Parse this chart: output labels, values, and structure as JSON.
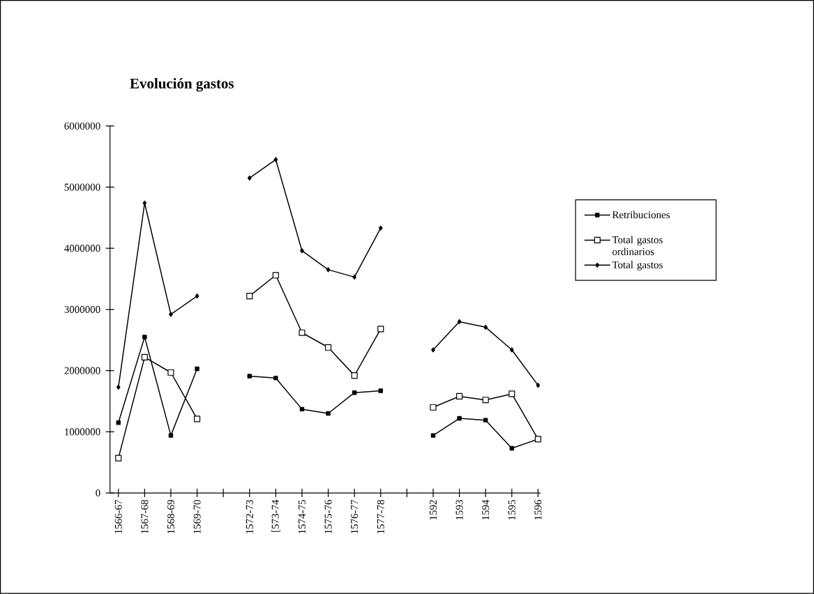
{
  "chart_data": {
    "type": "line",
    "title": "Evolución gastos",
    "categories": [
      "1566-67",
      "1567-68",
      "1568-69",
      "1569-70",
      null,
      "1572-73",
      "[573-74",
      "1574-75",
      "1575-76",
      "1576-77",
      "1577-78",
      null,
      "1592",
      "1593",
      "1594",
      "1595",
      "1596"
    ],
    "series": [
      {
        "name": "Retribuciones",
        "color": "#000000",
        "marker": "square",
        "values": [
          1150000,
          2550000,
          940000,
          2030000,
          null,
          1910000,
          1880000,
          1370000,
          1300000,
          1640000,
          1670000,
          null,
          940000,
          1220000,
          1190000,
          730000,
          880000
        ]
      },
      {
        "name": "Total gastos ordinarios",
        "color": "#000000",
        "marker": "square",
        "values": [
          570000,
          2220000,
          1970000,
          1210000,
          null,
          3220000,
          3560000,
          2620000,
          2380000,
          1920000,
          2680000,
          null,
          1400000,
          1580000,
          1520000,
          1620000,
          880000
        ]
      },
      {
        "name": "Total gastos",
        "color": "#000000",
        "marker": "diamond",
        "values": [
          1730000,
          4740000,
          2920000,
          3220000,
          null,
          5150000,
          5450000,
          3960000,
          3650000,
          3530000,
          4330000,
          null,
          2340000,
          2800000,
          2710000,
          2340000,
          1760000
        ]
      }
    ],
    "ylim": [
      0,
      6000000
    ],
    "yticks": [
      0,
      1000000,
      2000000,
      3000000,
      4000000,
      5000000,
      6000000
    ],
    "legend": "right",
    "line_style": "solid",
    "grid": false
  }
}
